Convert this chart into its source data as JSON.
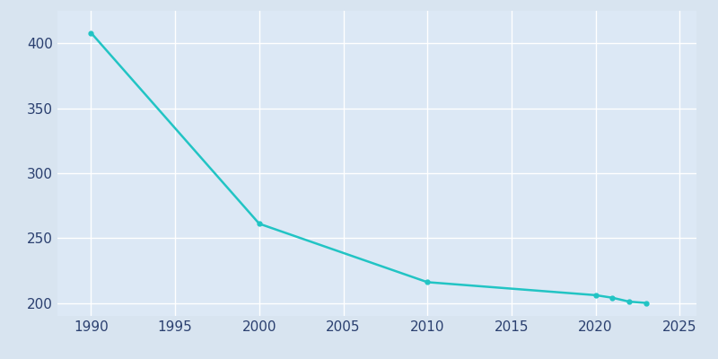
{
  "years": [
    1990,
    2000,
    2010,
    2020,
    2021,
    2022,
    2023
  ],
  "population": [
    408,
    261,
    216,
    206,
    204,
    201,
    200
  ],
  "line_color": "#22c4c4",
  "marker": "o",
  "marker_size": 3.5,
  "linewidth": 1.8,
  "fig_bg_color": "#d8e4f0",
  "plot_bg_color": "#dce8f5",
  "grid_color": "#ffffff",
  "tick_color": "#2a3f6f",
  "xlim": [
    1988,
    2026
  ],
  "ylim": [
    190,
    425
  ],
  "yticks": [
    200,
    250,
    300,
    350,
    400
  ],
  "xticks": [
    1990,
    1995,
    2000,
    2005,
    2010,
    2015,
    2020,
    2025
  ],
  "xlabel": "",
  "ylabel": ""
}
